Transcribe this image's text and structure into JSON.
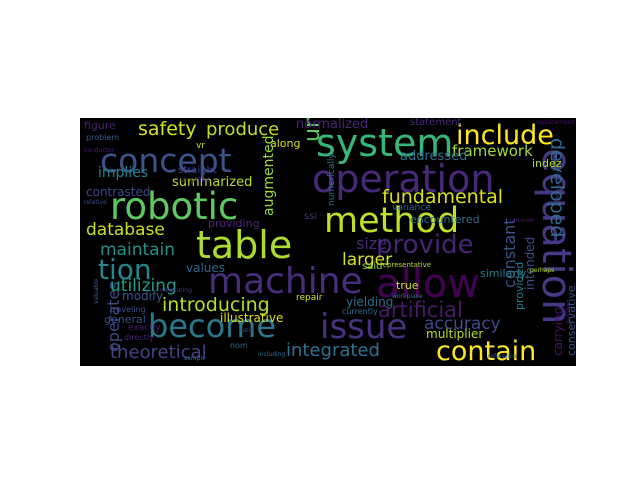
{
  "cloud": {
    "background": "#000000",
    "words": [
      {
        "text": "concept",
        "color": "#3b528b"
      },
      {
        "text": "system",
        "color": "#35b779"
      },
      {
        "text": "include",
        "color": "#fde725"
      },
      {
        "text": "operation",
        "color": "#482878"
      },
      {
        "text": "robotic",
        "color": "#5ec962"
      },
      {
        "text": "method",
        "color": "#c2df23"
      },
      {
        "text": "table",
        "color": "#addc30"
      },
      {
        "text": "machine",
        "color": "#472d7b"
      },
      {
        "text": "allow",
        "color": "#440154"
      },
      {
        "text": "equation",
        "color": "#443983"
      },
      {
        "text": "become",
        "color": "#2a788e"
      },
      {
        "text": "issue",
        "color": "#46327e"
      },
      {
        "text": "contain",
        "color": "#fde725"
      },
      {
        "text": "provide",
        "color": "#482475"
      },
      {
        "text": "tion",
        "color": "#23888e"
      },
      {
        "text": "safety",
        "color": "#d2e21b"
      },
      {
        "text": "produce",
        "color": "#bddf26"
      },
      {
        "text": "fundamental",
        "color": "#d8e219"
      },
      {
        "text": "unifies",
        "color": "#5ec962"
      },
      {
        "text": "developed",
        "color": "#31688e"
      },
      {
        "text": "database",
        "color": "#c8e020"
      },
      {
        "text": "introducing",
        "color": "#b5de2b"
      },
      {
        "text": "artificial",
        "color": "#481a6c"
      },
      {
        "text": "integrated",
        "color": "#2c728e"
      },
      {
        "text": "theoretical",
        "color": "#414487"
      },
      {
        "text": "accuracy",
        "color": "#3e4a89"
      },
      {
        "text": "framework",
        "color": "#9fda3a"
      },
      {
        "text": "constant",
        "color": "#3b528b"
      },
      {
        "text": "operates",
        "color": "#3e4989"
      },
      {
        "text": "maintain",
        "color": "#21918c"
      },
      {
        "text": "utilizing",
        "color": "#1f9e89"
      },
      {
        "text": "larger",
        "color": "#d5e21a"
      },
      {
        "text": "implies",
        "color": "#26828e"
      },
      {
        "text": "summarized",
        "color": "#b8de29"
      },
      {
        "text": "augmented",
        "color": "#95d840"
      },
      {
        "text": "normalized",
        "color": "#482475"
      },
      {
        "text": "addressed",
        "color": "#2e6e8e"
      },
      {
        "text": "size",
        "color": "#482878"
      },
      {
        "text": "modify",
        "color": "#3a548c"
      },
      {
        "text": "values",
        "color": "#31688e"
      },
      {
        "text": "contrasted",
        "color": "#3f4889"
      },
      {
        "text": "yielding",
        "color": "#2d708e"
      },
      {
        "text": "illustrative",
        "color": "#d8e219"
      },
      {
        "text": "multiplier",
        "color": "#b8de29"
      },
      {
        "text": "intended",
        "color": "#3d4e8a"
      },
      {
        "text": "carrying",
        "color": "#471365"
      },
      {
        "text": "conservative",
        "color": "#3b528b"
      },
      {
        "text": "provided",
        "color": "#287d8e"
      },
      {
        "text": "similarly",
        "color": "#26828e"
      },
      {
        "text": "figure",
        "color": "#481f70"
      },
      {
        "text": "general",
        "color": "#3c508b"
      },
      {
        "text": "encountered",
        "color": "#2e6f8e"
      },
      {
        "text": "true",
        "color": "#d2e21b"
      },
      {
        "text": "providing",
        "color": "#482677"
      },
      {
        "text": "along",
        "color": "#d0e11c"
      },
      {
        "text": "statement",
        "color": "#472c7a"
      },
      {
        "text": "indez",
        "color": "#b2dd2d"
      },
      {
        "text": "said",
        "color": "#8fd744"
      },
      {
        "text": "straight",
        "color": "#404688"
      },
      {
        "text": "variance",
        "color": "#31688e"
      },
      {
        "text": "repair",
        "color": "#d5e21a"
      },
      {
        "text": "exactly",
        "color": "#481c6e"
      },
      {
        "text": "currently",
        "color": "#2f6c8e"
      },
      {
        "text": "directly",
        "color": "#482576"
      },
      {
        "text": "traveling",
        "color": "#3b528b"
      },
      {
        "text": "numerically",
        "color": "#2b758e"
      },
      {
        "text": "representative",
        "color": "#b5de2b"
      },
      {
        "text": "simplified",
        "color": "#472f7d"
      },
      {
        "text": "problem",
        "color": "#355f8d"
      },
      {
        "text": "ssi",
        "color": "#472d7b"
      },
      {
        "text": "vr",
        "color": "#d0e11c"
      },
      {
        "text": "nom",
        "color": "#31688e"
      },
      {
        "text": "conductor",
        "color": "#482173"
      },
      {
        "text": "relative",
        "color": "#3d4d8a"
      },
      {
        "text": "including",
        "color": "#2c718e"
      },
      {
        "text": "measuring",
        "color": "#433e85"
      },
      {
        "text": "perhaps",
        "color": "#b2dd2d"
      },
      {
        "text": "replacement",
        "color": "#481467"
      },
      {
        "text": "decreased",
        "color": "#3f4788"
      },
      {
        "text": "valuable",
        "color": "#34608d"
      },
      {
        "text": "passive",
        "color": "#482979"
      },
      {
        "text": "reference",
        "color": "#355e8d"
      },
      {
        "text": "workplace",
        "color": "#2a778e"
      },
      {
        "text": "uncover",
        "color": "#481d6f"
      },
      {
        "text": "ratio",
        "color": "#3e4a89"
      },
      {
        "text": "sample",
        "color": "#2e6d8e"
      }
    ]
  }
}
